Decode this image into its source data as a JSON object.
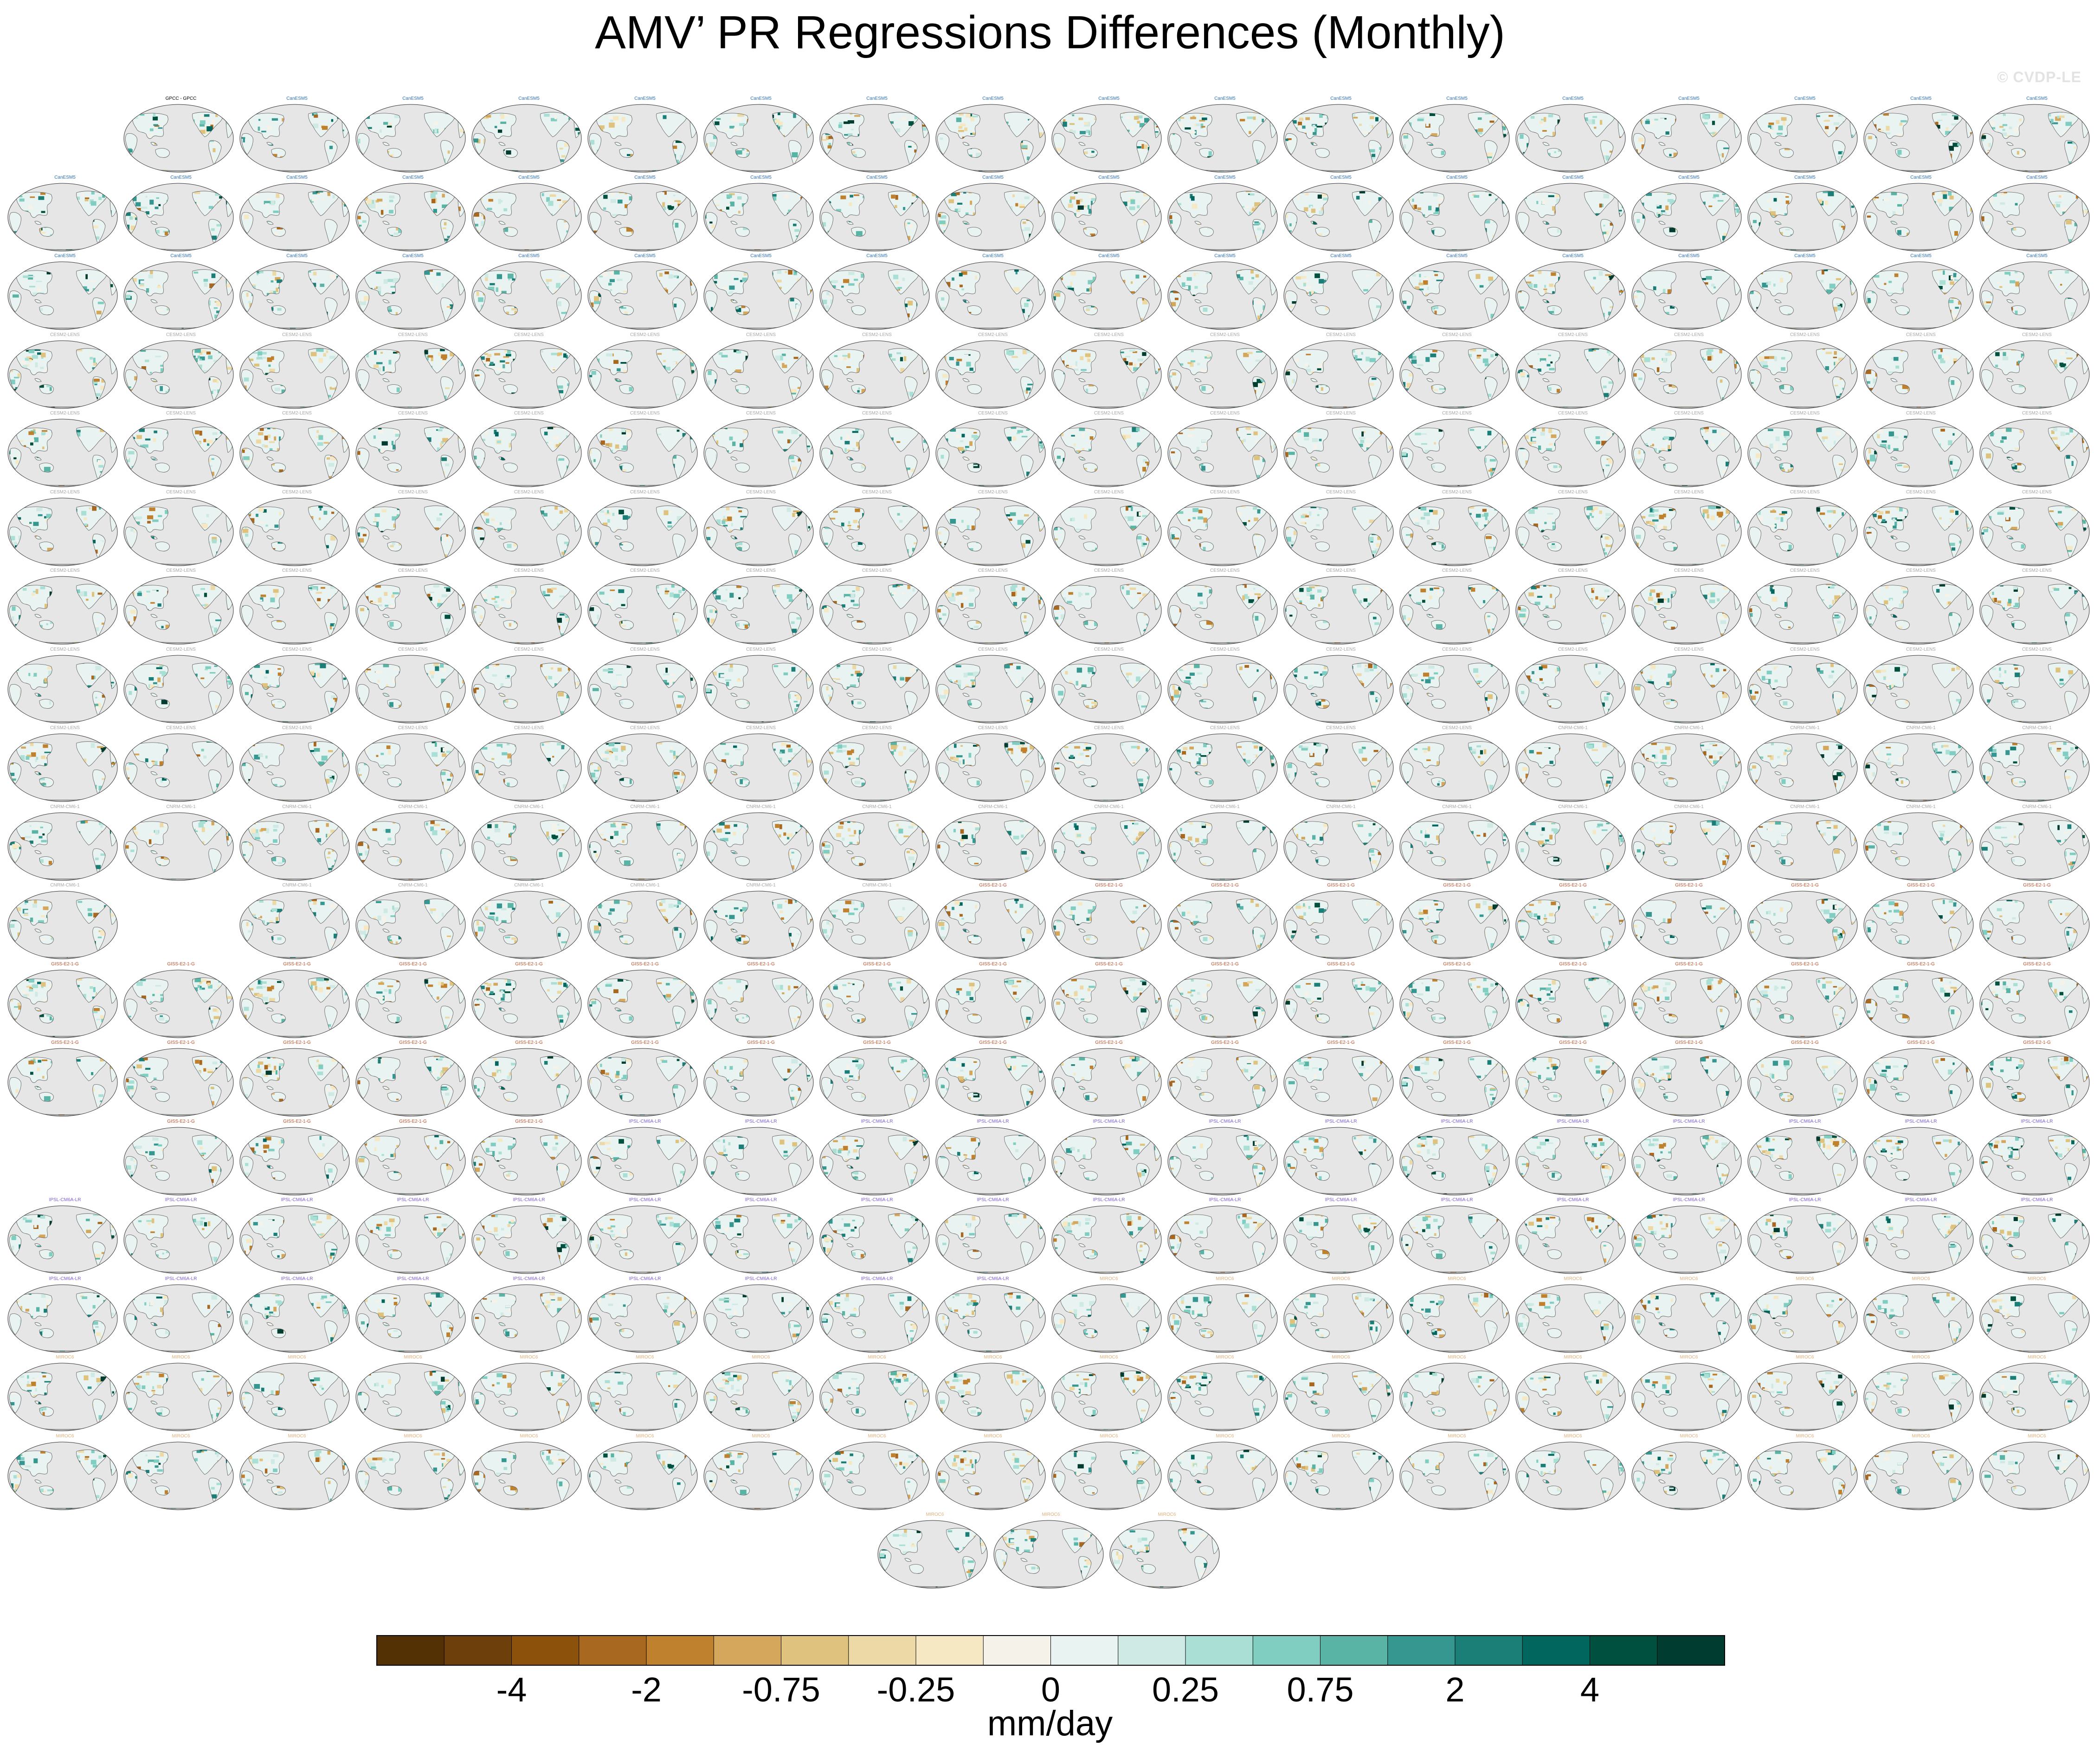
{
  "title": "AMV’ PR Regressions Differences (Monthly)",
  "credit": "© CVDP-LE",
  "chart_data": {
    "type": "heatmap",
    "title": "AMV’ PR Regressions Differences (Monthly)",
    "description_grid": {
      "rows": 19,
      "panels_per_row": [
        17,
        18,
        18,
        18,
        18,
        18,
        18,
        18,
        18,
        18,
        17,
        18,
        18,
        17,
        18,
        18,
        18,
        18,
        3
      ],
      "map_projection": "global Robinson, Pacific-centered",
      "missing_value_color": "#e6e6e6",
      "coastline_color": "#555555"
    },
    "colorbar": {
      "units": "mm/day",
      "levels": [
        -5,
        -4,
        -3,
        -2,
        -1,
        -0.75,
        -0.5,
        -0.25,
        -0.1,
        0,
        0.1,
        0.25,
        0.5,
        0.75,
        1,
        2,
        3,
        4,
        5
      ],
      "tick_labels": [
        "-4",
        "-2",
        "-0.75",
        "-0.25",
        "0",
        "0.25",
        "0.75",
        "2",
        "4"
      ],
      "colors": [
        "#543005",
        "#6d3f0b",
        "#8c510a",
        "#a8681f",
        "#bf812d",
        "#d4a75c",
        "#dfc27d",
        "#ecd9a6",
        "#f6e8c3",
        "#f5f2ea",
        "#e9f3f1",
        "#cfeae5",
        "#a9dfd4",
        "#80cdc1",
        "#5ab4a6",
        "#35978f",
        "#1c7f77",
        "#01665e",
        "#00503f",
        "#003c30"
      ]
    },
    "panel_groups": [
      {
        "name": "CanESM5",
        "title_color": "#2c6fb8"
      },
      {
        "name": "CESM2-LENS",
        "title_color": "#a6a6a6"
      },
      {
        "name": "CNRM-CM6-1",
        "title_color": "#a6a6a6"
      },
      {
        "name": "GISS-E2-1-G",
        "title_color": "#c0502a"
      },
      {
        "name": "IPSL-CM6A-LR",
        "title_color": "#7b5bd6"
      },
      {
        "name": "MIROC6",
        "title_color": "#e0b07a"
      }
    ],
    "first_panel_title": "GPCC - GPCC",
    "first_panel_title_color": "#000000"
  }
}
